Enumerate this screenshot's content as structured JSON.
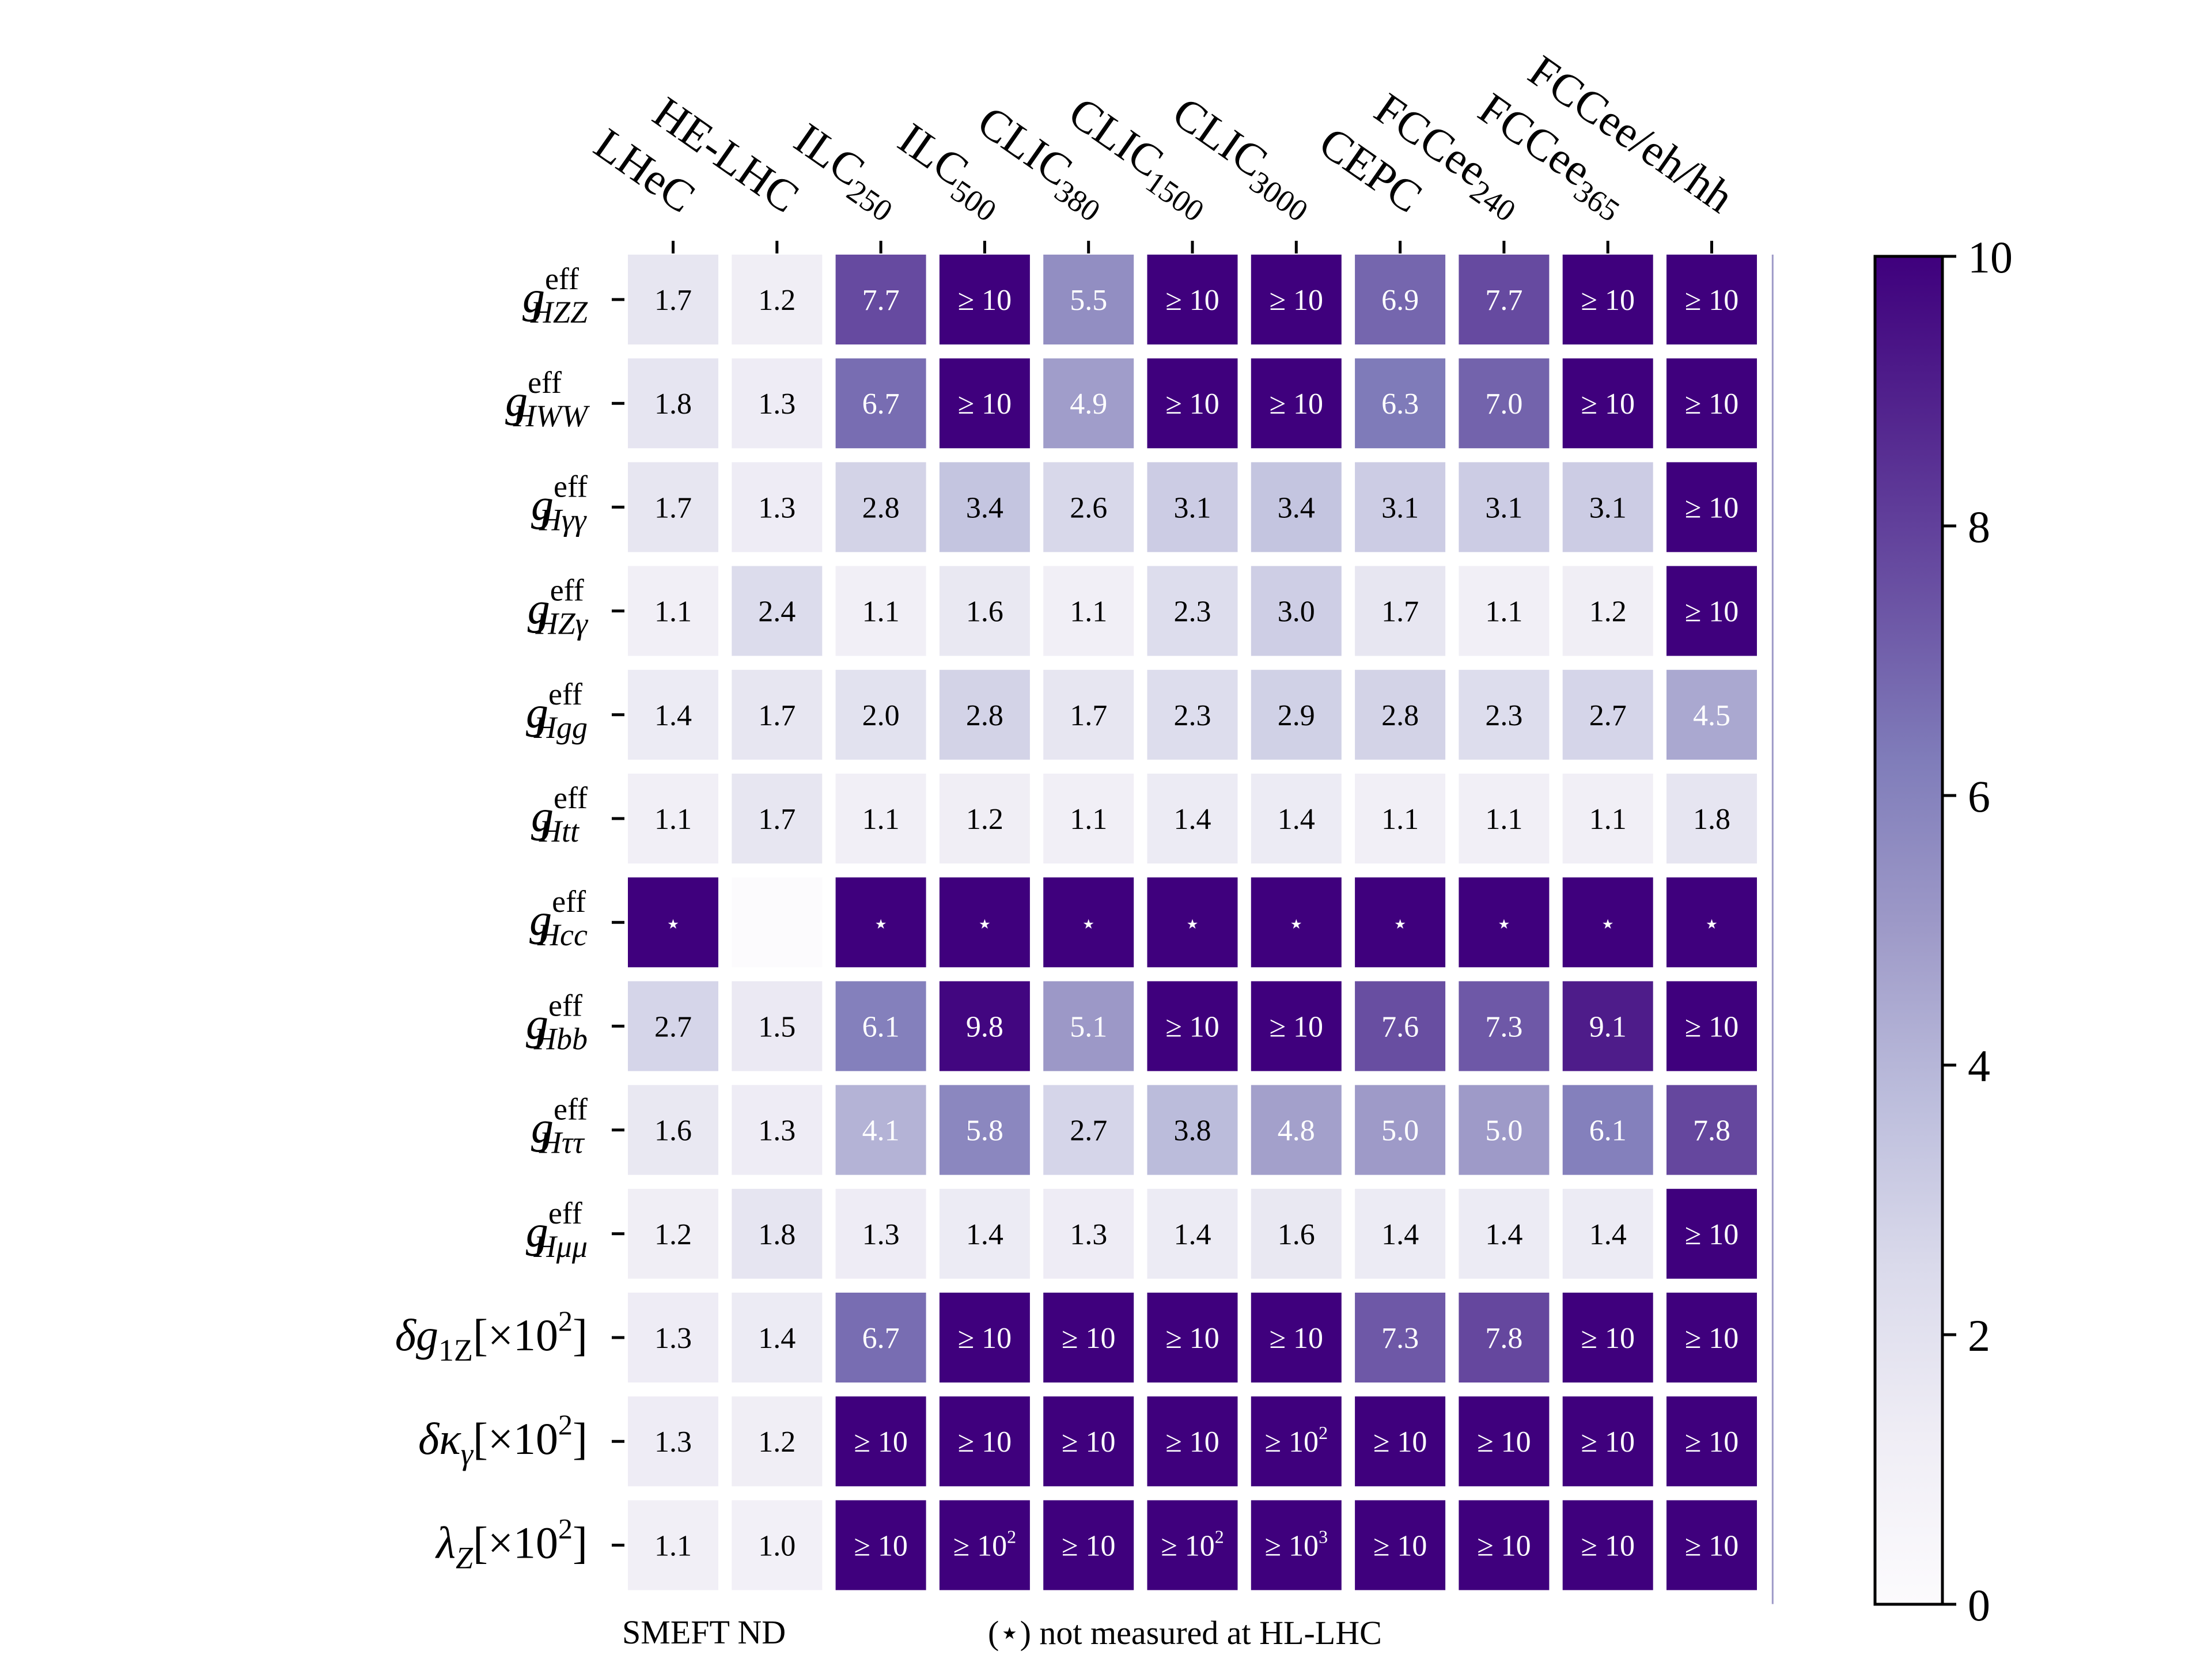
{
  "chart_data": {
    "type": "heatmap",
    "columns": [
      {
        "base": "LHeC",
        "sub": ""
      },
      {
        "base": "HE-LHC",
        "sub": ""
      },
      {
        "base": "ILC",
        "sub": "250"
      },
      {
        "base": "ILC",
        "sub": "500"
      },
      {
        "base": "CLIC",
        "sub": "380"
      },
      {
        "base": "CLIC",
        "sub": "1500"
      },
      {
        "base": "CLIC",
        "sub": "3000"
      },
      {
        "base": "CEPC",
        "sub": ""
      },
      {
        "base": "FCCee",
        "sub": "240"
      },
      {
        "base": "FCCee",
        "sub": "365"
      },
      {
        "base": "FCCee/eh/hh",
        "sub": ""
      }
    ],
    "rows": [
      {
        "kind": "g",
        "sub": "HZZ"
      },
      {
        "kind": "g",
        "sub": "HWW"
      },
      {
        "kind": "g",
        "sub": "Hγγ"
      },
      {
        "kind": "g",
        "sub": "HZγ"
      },
      {
        "kind": "g",
        "sub": "Hgg"
      },
      {
        "kind": "g",
        "sub": "Htt"
      },
      {
        "kind": "g",
        "sub": "Hcc"
      },
      {
        "kind": "g",
        "sub": "Hbb"
      },
      {
        "kind": "g",
        "sub": "Hττ"
      },
      {
        "kind": "g",
        "sub": "Hμμ"
      },
      {
        "kind": "delta",
        "sym": "g",
        "sub": "1Z"
      },
      {
        "kind": "delta",
        "sym": "κ",
        "sub": "γ"
      },
      {
        "kind": "plain",
        "sym": "λ",
        "sub": "Z"
      }
    ],
    "g_symbol": "g",
    "g_superscript": "eff",
    "delta_symbol": "δ",
    "scale_suffix": "[×10",
    "scale_exponent": "2",
    "scale_close": "]",
    "values": [
      [
        1.7,
        1.2,
        7.7,
        10,
        5.5,
        10,
        10,
        6.9,
        7.7,
        10,
        10
      ],
      [
        1.8,
        1.3,
        6.7,
        10,
        4.9,
        10,
        10,
        6.3,
        7.0,
        10,
        10
      ],
      [
        1.7,
        1.3,
        2.8,
        3.4,
        2.6,
        3.1,
        3.4,
        3.1,
        3.1,
        3.1,
        10
      ],
      [
        1.1,
        2.4,
        1.1,
        1.6,
        1.1,
        2.3,
        3.0,
        1.7,
        1.1,
        1.2,
        10
      ],
      [
        1.4,
        1.7,
        2.0,
        2.8,
        1.7,
        2.3,
        2.9,
        2.8,
        2.3,
        2.7,
        4.5
      ],
      [
        1.1,
        1.7,
        1.1,
        1.2,
        1.1,
        1.4,
        1.4,
        1.1,
        1.1,
        1.1,
        1.8
      ],
      [
        10,
        0,
        10,
        10,
        10,
        10,
        10,
        10,
        10,
        10,
        10
      ],
      [
        2.7,
        1.5,
        6.1,
        9.8,
        5.1,
        10,
        10,
        7.6,
        7.3,
        9.1,
        10
      ],
      [
        1.6,
        1.3,
        4.1,
        5.8,
        2.7,
        3.8,
        4.8,
        5.0,
        5.0,
        6.1,
        7.8
      ],
      [
        1.2,
        1.8,
        1.3,
        1.4,
        1.3,
        1.4,
        1.6,
        1.4,
        1.4,
        1.4,
        10
      ],
      [
        1.3,
        1.4,
        6.7,
        10,
        10,
        10,
        10,
        7.3,
        7.8,
        10,
        10
      ],
      [
        1.3,
        1.2,
        10,
        10,
        10,
        10,
        10,
        10,
        10,
        10,
        10
      ],
      [
        1.1,
        1.0,
        10,
        10,
        10,
        10,
        10,
        10,
        10,
        10,
        10
      ]
    ],
    "labels": [
      [
        "1.7",
        "1.2",
        "7.7",
        "≥ 10",
        "5.5",
        "≥ 10",
        "≥ 10",
        "6.9",
        "7.7",
        "≥ 10",
        "≥ 10"
      ],
      [
        "1.8",
        "1.3",
        "6.7",
        "≥ 10",
        "4.9",
        "≥ 10",
        "≥ 10",
        "6.3",
        "7.0",
        "≥ 10",
        "≥ 10"
      ],
      [
        "1.7",
        "1.3",
        "2.8",
        "3.4",
        "2.6",
        "3.1",
        "3.4",
        "3.1",
        "3.1",
        "3.1",
        "≥ 10"
      ],
      [
        "1.1",
        "2.4",
        "1.1",
        "1.6",
        "1.1",
        "2.3",
        "3.0",
        "1.7",
        "1.1",
        "1.2",
        "≥ 10"
      ],
      [
        "1.4",
        "1.7",
        "2.0",
        "2.8",
        "1.7",
        "2.3",
        "2.9",
        "2.8",
        "2.3",
        "2.7",
        "4.5"
      ],
      [
        "1.1",
        "1.7",
        "1.1",
        "1.2",
        "1.1",
        "1.4",
        "1.4",
        "1.1",
        "1.1",
        "1.1",
        "1.8"
      ],
      [
        "⋆",
        "",
        "⋆",
        "⋆",
        "⋆",
        "⋆",
        "⋆",
        "⋆",
        "⋆",
        "⋆",
        "⋆"
      ],
      [
        "2.7",
        "1.5",
        "6.1",
        "9.8",
        "5.1",
        "≥ 10",
        "≥ 10",
        "7.6",
        "7.3",
        "9.1",
        "≥ 10"
      ],
      [
        "1.6",
        "1.3",
        "4.1",
        "5.8",
        "2.7",
        "3.8",
        "4.8",
        "5.0",
        "5.0",
        "6.1",
        "7.8"
      ],
      [
        "1.2",
        "1.8",
        "1.3",
        "1.4",
        "1.3",
        "1.4",
        "1.6",
        "1.4",
        "1.4",
        "1.4",
        "≥ 10"
      ],
      [
        "1.3",
        "1.4",
        "6.7",
        "≥ 10",
        "≥ 10",
        "≥ 10",
        "≥ 10",
        "7.3",
        "7.8",
        "≥ 10",
        "≥ 10"
      ],
      [
        "1.3",
        "1.2",
        "≥ 10",
        "≥ 10",
        "≥ 10",
        "≥ 10",
        "≥ 10^2",
        "≥ 10",
        "≥ 10",
        "≥ 10",
        "≥ 10"
      ],
      [
        "1.1",
        "1.0",
        "≥ 10",
        "≥ 10^2",
        "≥ 10",
        "≥ 10^2",
        "≥ 10^3",
        "≥ 10",
        "≥ 10",
        "≥ 10",
        "≥ 10"
      ]
    ],
    "colorbar": {
      "range": [
        0,
        10
      ],
      "ticks": [
        "0",
        "2",
        "4",
        "6",
        "8",
        "10"
      ],
      "colormap": "Purples",
      "colors": [
        "#fcfbfd",
        "#efedf5",
        "#dadaeb",
        "#bcbddc",
        "#9e9ac8",
        "#807dba",
        "#6a51a3",
        "#54278f",
        "#3f007d"
      ]
    },
    "grid": false,
    "footer_left": "SMEFT ND",
    "footer_right": "(⋆) not measured at HL-LHC"
  }
}
